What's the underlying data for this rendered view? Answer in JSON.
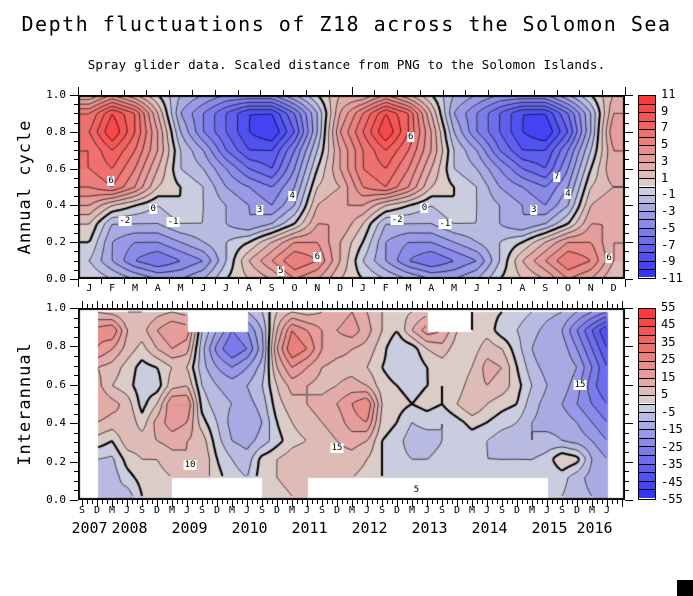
{
  "title": "Depth fluctuations of Z18 across the Solomon Sea",
  "subtitle": "Spray glider data. Scaled distance from PNG to the Solomon Islands.",
  "chart_data": [
    {
      "type": "heatmap",
      "name": "annual-cycle-filled-contours",
      "ylabel": "Annual cycle",
      "x_labels": [
        "J",
        "F",
        "M",
        "A",
        "M",
        "J",
        "J",
        "A",
        "S",
        "O",
        "N",
        "D",
        "J",
        "F",
        "M",
        "A",
        "M",
        "J",
        "J",
        "A",
        "S",
        "O",
        "N",
        "D"
      ],
      "y_tick_labels": [
        "1.0",
        "0.8",
        "0.6",
        "0.4",
        "0.2",
        "0.0"
      ],
      "ylim": [
        0,
        1
      ],
      "contour_interval": 1,
      "value_range": [
        -11,
        11
      ],
      "colorbar_ticks": [
        "11",
        "9",
        "7",
        "5",
        "3",
        "1",
        "-1",
        "-3",
        "-5",
        "-7",
        "-9",
        "-11"
      ],
      "grid_rows_y": [
        1.0,
        0.9,
        0.8,
        0.7,
        0.6,
        0.5,
        0.4,
        0.3,
        0.2,
        0.1,
        0.0
      ],
      "values": [
        [
          2,
          4,
          2,
          0,
          -2,
          -3,
          -4,
          -4,
          -4,
          -2,
          0,
          2,
          2,
          4,
          2,
          0,
          -2,
          -3,
          -4,
          -4,
          -4,
          -2,
          0,
          2
        ],
        [
          6,
          9,
          7,
          2,
          -3,
          -5,
          -7,
          -9,
          -9,
          -6,
          -2,
          3,
          6,
          9,
          7,
          2,
          -3,
          -5,
          -7,
          -9,
          -9,
          -6,
          -2,
          3
        ],
        [
          7,
          10,
          7,
          3,
          -2,
          -5,
          -7,
          -9,
          -10,
          -7,
          -2,
          4,
          7,
          10,
          7,
          3,
          -2,
          -5,
          -7,
          -9,
          -10,
          -7,
          -2,
          4
        ],
        [
          6,
          8,
          6,
          3,
          -1,
          -3,
          -6,
          -8,
          -8,
          -5,
          -1,
          3,
          6,
          8,
          6,
          3,
          -1,
          -3,
          -6,
          -8,
          -8,
          -5,
          -1,
          3
        ],
        [
          6,
          7,
          5,
          2,
          -1,
          -2,
          -4,
          -6,
          -7,
          -4,
          0,
          3,
          6,
          7,
          5,
          2,
          -1,
          -2,
          -4,
          -6,
          -7,
          -4,
          0,
          3
        ],
        [
          5,
          6,
          4,
          1,
          0,
          -1,
          -3,
          -4,
          -5,
          -3,
          1,
          2,
          5,
          6,
          4,
          1,
          0,
          -1,
          -3,
          -4,
          -5,
          -3,
          1,
          2
        ],
        [
          3,
          1,
          0,
          -1,
          0,
          -1,
          -2,
          -3,
          -4,
          -2,
          2,
          3,
          3,
          1,
          0,
          -1,
          0,
          -1,
          -2,
          -3,
          -4,
          -2,
          2,
          3
        ],
        [
          1,
          -2,
          -2,
          -2,
          -1,
          -1,
          -2,
          -3,
          -2,
          0,
          3,
          3,
          1,
          -2,
          -2,
          -2,
          -1,
          -1,
          -2,
          -3,
          -2,
          0,
          3,
          3
        ],
        [
          0,
          -3,
          -4,
          -4,
          -3,
          -2,
          -1,
          0,
          2,
          4,
          4,
          2,
          0,
          -3,
          -4,
          -4,
          -3,
          -2,
          -1,
          0,
          2,
          4,
          4,
          2
        ],
        [
          -1,
          -3,
          -5,
          -6,
          -5,
          -4,
          -1,
          2,
          4,
          6,
          5,
          2,
          -1,
          -3,
          -5,
          -6,
          -5,
          -4,
          -1,
          2,
          4,
          6,
          5,
          2
        ],
        [
          0,
          -1,
          -2,
          -3,
          -3,
          -2,
          0,
          1,
          2,
          4,
          3,
          1,
          0,
          -1,
          -2,
          -3,
          -3,
          -2,
          0,
          1,
          2,
          4,
          3,
          1
        ]
      ],
      "contour_labels": [
        {
          "t": "6",
          "x": 1.45,
          "f": 0.53
        },
        {
          "t": "-2",
          "x": 2.05,
          "f": 0.315
        },
        {
          "t": "0",
          "x": 3.3,
          "f": 0.38
        },
        {
          "t": "-1",
          "x": 4.17,
          "f": 0.31
        },
        {
          "t": "3",
          "x": 7.97,
          "f": 0.375
        },
        {
          "t": "4",
          "x": 9.4,
          "f": 0.45
        },
        {
          "t": "5",
          "x": 8.9,
          "f": 0.045
        },
        {
          "t": "6",
          "x": 10.5,
          "f": 0.12
        },
        {
          "t": "6",
          "x": 14.6,
          "f": 0.77
        },
        {
          "t": "-2",
          "x": 14.0,
          "f": 0.32
        },
        {
          "t": "0",
          "x": 15.2,
          "f": 0.385
        },
        {
          "t": "-1",
          "x": 16.1,
          "f": 0.3
        },
        {
          "t": "7",
          "x": 21.0,
          "f": 0.555
        },
        {
          "t": "4",
          "x": 21.5,
          "f": 0.46
        },
        {
          "t": "3",
          "x": 20.0,
          "f": 0.375
        },
        {
          "t": "6",
          "x": 23.3,
          "f": 0.115
        }
      ]
    },
    {
      "type": "heatmap",
      "name": "interannual-filled-contours",
      "ylabel": "Interannual",
      "x_labels": [
        "S",
        "D",
        "M",
        "J",
        "S",
        "D",
        "M",
        "J",
        "S",
        "D",
        "M",
        "J",
        "S",
        "D",
        "M",
        "J",
        "S",
        "D",
        "M",
        "J",
        "S",
        "D",
        "M",
        "J",
        "S",
        "D",
        "M",
        "J",
        "S",
        "D",
        "M",
        "J",
        "S",
        "D",
        "M",
        "J"
      ],
      "year_labels": [
        "2007",
        "2008",
        "2009",
        "2010",
        "2011",
        "2012",
        "2013",
        "2014",
        "2015",
        "2016"
      ],
      "y_tick_labels": [
        "1.0",
        "0.8",
        "0.6",
        "0.4",
        "0.2",
        "0.0"
      ],
      "ylim": [
        0,
        1
      ],
      "contour_interval": 5,
      "value_range": [
        -55,
        55
      ],
      "colorbar_ticks": [
        "55",
        "45",
        "35",
        "25",
        "15",
        "5",
        "-5",
        "-15",
        "-25",
        "-35",
        "-45",
        "-55"
      ],
      "grid_rows_y": [
        1.0,
        0.9,
        0.8,
        0.7,
        0.6,
        0.5,
        0.4,
        0.3,
        0.2,
        0.1,
        0.0
      ],
      "values": [
        [
          null,
          10,
          8,
          5,
          5,
          8,
          10,
          8,
          null,
          null,
          null,
          -10,
          -5,
          5,
          10,
          8,
          10,
          12,
          15,
          10,
          5,
          3,
          5,
          8,
          null,
          null,
          0,
          2,
          0,
          -3,
          -5,
          -8,
          -10,
          -15,
          -20,
          -25
        ],
        [
          null,
          22,
          25,
          10,
          8,
          15,
          20,
          18,
          -5,
          -15,
          -25,
          -20,
          -10,
          10,
          25,
          20,
          15,
          15,
          18,
          12,
          5,
          0,
          10,
          18,
          15,
          5,
          0,
          3,
          -3,
          -5,
          -8,
          -12,
          -15,
          -25,
          -35,
          -45
        ],
        [
          null,
          20,
          15,
          8,
          3,
          10,
          15,
          12,
          -8,
          -22,
          -30,
          -25,
          -12,
          15,
          30,
          25,
          15,
          12,
          10,
          8,
          2,
          -5,
          -3,
          5,
          8,
          2,
          2,
          8,
          5,
          -3,
          -10,
          -15,
          -12,
          -20,
          -30,
          -40
        ],
        [
          null,
          10,
          8,
          3,
          -2,
          0,
          5,
          5,
          -8,
          -15,
          -20,
          -15,
          -8,
          10,
          20,
          15,
          10,
          8,
          8,
          5,
          0,
          -3,
          -5,
          0,
          2,
          0,
          5,
          12,
          10,
          0,
          -8,
          -12,
          -10,
          -15,
          -25,
          -35
        ],
        [
          null,
          12,
          5,
          2,
          -3,
          -3,
          8,
          10,
          -5,
          -10,
          -12,
          -10,
          -5,
          5,
          12,
          10,
          8,
          10,
          12,
          10,
          2,
          0,
          -2,
          0,
          0,
          2,
          8,
          10,
          8,
          2,
          -5,
          -10,
          -12,
          -18,
          -28,
          -35
        ],
        [
          null,
          15,
          12,
          8,
          -2,
          5,
          20,
          20,
          -2,
          -8,
          -10,
          -12,
          -8,
          3,
          8,
          10,
          12,
          15,
          20,
          25,
          5,
          2,
          0,
          2,
          0,
          5,
          10,
          5,
          2,
          0,
          -8,
          -12,
          -15,
          -20,
          -25,
          -30
        ],
        [
          null,
          10,
          8,
          10,
          2,
          12,
          18,
          15,
          2,
          -5,
          -12,
          -15,
          -10,
          0,
          5,
          8,
          10,
          12,
          18,
          20,
          3,
          0,
          -5,
          -3,
          -5,
          -2,
          2,
          0,
          -3,
          -5,
          -10,
          -12,
          -12,
          -15,
          -20,
          -25
        ],
        [
          null,
          3,
          0,
          8,
          8,
          10,
          12,
          10,
          8,
          -3,
          -10,
          -12,
          -8,
          -2,
          3,
          5,
          8,
          10,
          12,
          10,
          0,
          -3,
          -8,
          -8,
          -5,
          -5,
          -3,
          -5,
          -8,
          -8,
          -10,
          -8,
          -10,
          -12,
          -15,
          -20
        ],
        [
          null,
          -5,
          -6,
          2,
          5,
          5,
          8,
          10,
          10,
          0,
          -5,
          -8,
          2,
          5,
          8,
          10,
          10,
          8,
          8,
          5,
          0,
          -3,
          -5,
          -5,
          -3,
          -3,
          -2,
          -5,
          -5,
          -5,
          -5,
          -3,
          5,
          2,
          -10,
          -15
        ],
        [
          null,
          -8,
          -8,
          -2,
          2,
          3,
          5,
          8,
          8,
          2,
          -3,
          -5,
          3,
          5,
          8,
          10,
          8,
          5,
          5,
          3,
          0,
          -2,
          -2,
          -2,
          0,
          0,
          0,
          -2,
          -3,
          -2,
          -3,
          -5,
          -3,
          -8,
          -12,
          -15
        ],
        [
          null,
          -10,
          -5,
          -8,
          0,
          2,
          3,
          null,
          null,
          null,
          null,
          null,
          0,
          2,
          5,
          8,
          null,
          null,
          null,
          null,
          null,
          null,
          null,
          null,
          null,
          null,
          null,
          0,
          null,
          null,
          null,
          -3,
          -5,
          -8,
          -10,
          -12
        ]
      ],
      "contour_labels": [
        {
          "t": "10",
          "x": 7.2,
          "f": 0.18
        },
        {
          "t": "15",
          "x": 17.0,
          "f": 0.27
        },
        {
          "t": "5",
          "x": 22.3,
          "f": 0.05
        },
        {
          "t": "15",
          "x": 33.2,
          "f": 0.6
        }
      ]
    }
  ]
}
